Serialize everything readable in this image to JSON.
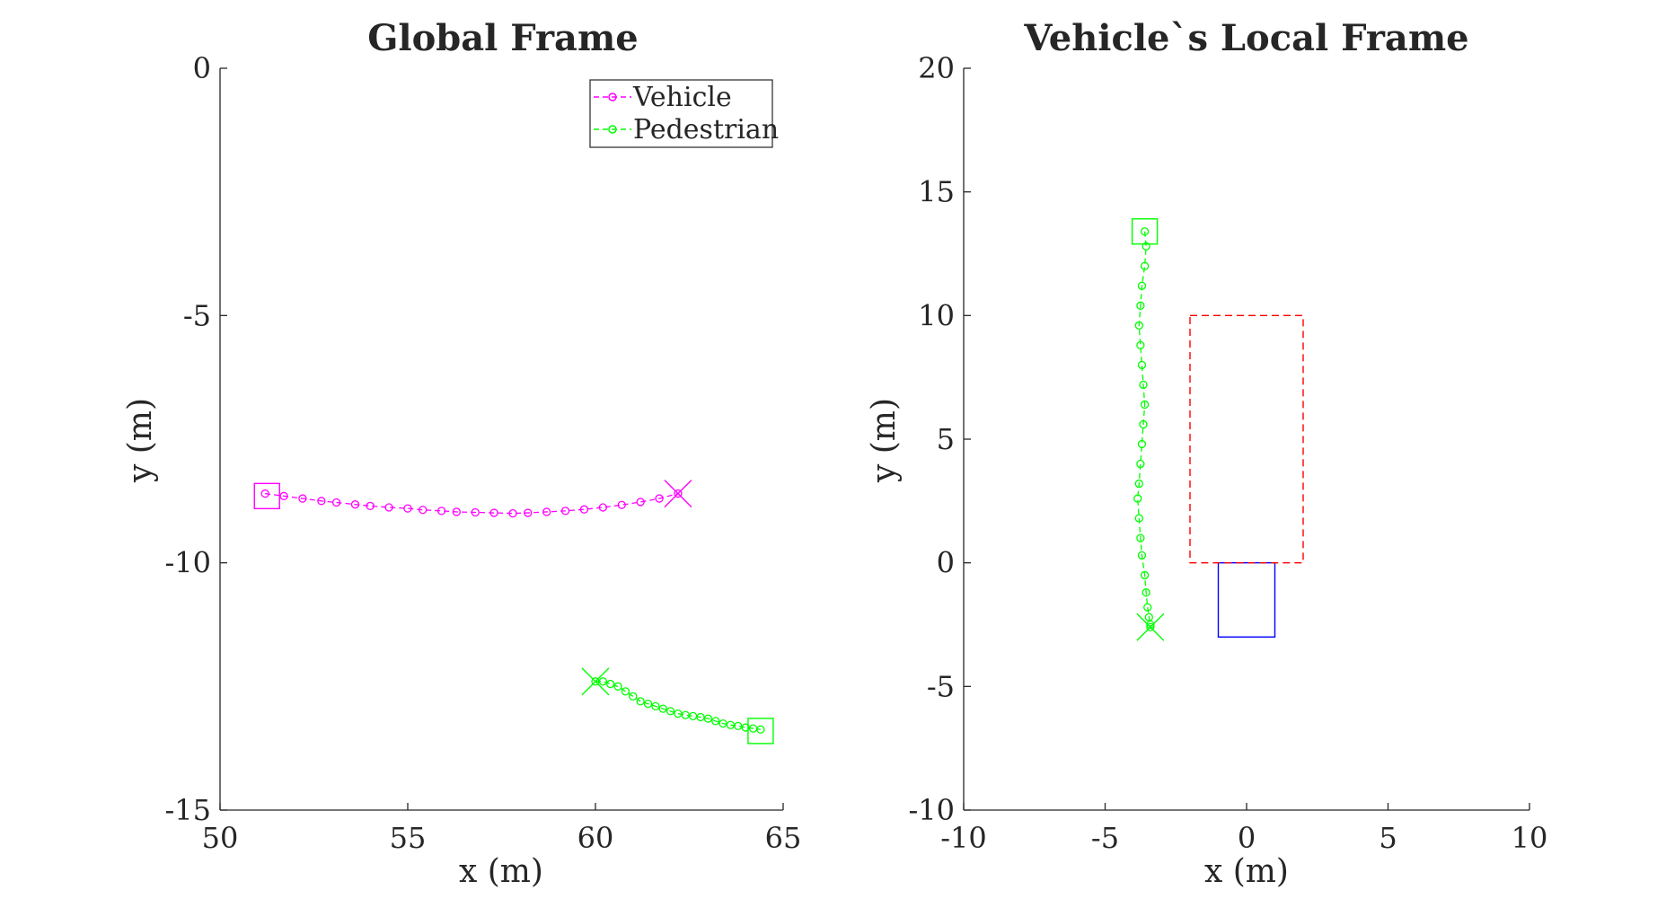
{
  "colors": {
    "vehicle": "#ff00ff",
    "pedestrian": "#00ff00",
    "ego_box": "#0000ff",
    "zone_box": "#ff0000",
    "axes": "#262626"
  },
  "chart_data": [
    {
      "type": "line",
      "title": "Global Frame",
      "xlabel": "x (m)",
      "ylabel": "y (m)",
      "xlim": [
        50,
        65
      ],
      "ylim": [
        -15,
        0
      ],
      "xticks": [
        "50",
        "55",
        "60",
        "65"
      ],
      "yticks": [
        "-15",
        "-10",
        "-5",
        "0"
      ],
      "grid": false,
      "legend_position": "top-right",
      "series": [
        {
          "name": "Vehicle",
          "style": "dashed-circles",
          "x": [
            51.2,
            51.7,
            52.2,
            52.7,
            53.1,
            53.6,
            54.0,
            54.5,
            55.0,
            55.4,
            55.9,
            56.3,
            56.8,
            57.3,
            57.8,
            58.2,
            58.7,
            59.2,
            59.7,
            60.2,
            60.7,
            61.2,
            61.7,
            62.2
          ],
          "y": [
            -8.6,
            -8.65,
            -8.7,
            -8.75,
            -8.78,
            -8.82,
            -8.85,
            -8.88,
            -8.9,
            -8.93,
            -8.95,
            -8.97,
            -8.98,
            -8.99,
            -9.0,
            -8.99,
            -8.97,
            -8.95,
            -8.92,
            -8.88,
            -8.83,
            -8.77,
            -8.7,
            -8.6
          ]
        },
        {
          "name": "Pedestrian",
          "style": "dashed-circles",
          "x": [
            60.0,
            60.2,
            60.4,
            60.6,
            60.8,
            61.0,
            61.2,
            61.4,
            61.6,
            61.8,
            62.0,
            62.2,
            62.4,
            62.6,
            62.8,
            63.0,
            63.2,
            63.4,
            63.6,
            63.8,
            64.0,
            64.2,
            64.4
          ],
          "y": [
            -12.4,
            -12.4,
            -12.45,
            -12.5,
            -12.6,
            -12.7,
            -12.8,
            -12.85,
            -12.9,
            -12.95,
            -13.0,
            -13.05,
            -13.08,
            -13.1,
            -13.12,
            -13.15,
            -13.2,
            -13.25,
            -13.28,
            -13.3,
            -13.33,
            -13.35,
            -13.37
          ]
        }
      ],
      "start_markers": [
        {
          "series": "Vehicle",
          "x": 51.25,
          "y": -8.65
        },
        {
          "series": "Pedestrian",
          "x": 64.4,
          "y": -13.4
        }
      ],
      "end_markers": [
        {
          "series": "Vehicle",
          "x": 62.2,
          "y": -8.6
        },
        {
          "series": "Pedestrian",
          "x": 60.0,
          "y": -12.4
        }
      ]
    },
    {
      "type": "line",
      "title": "Vehicle`s Local Frame",
      "xlabel": "x (m)",
      "ylabel": "y (m)",
      "xlim": [
        -10,
        10
      ],
      "ylim": [
        -10,
        20
      ],
      "xticks": [
        "-10",
        "-5",
        "0",
        "5",
        "10"
      ],
      "yticks": [
        "-10",
        "-5",
        "0",
        "5",
        "10",
        "15",
        "20"
      ],
      "grid": false,
      "series": [
        {
          "style": "dashed-circles",
          "x": [
            -3.6,
            -3.55,
            -3.6,
            -3.7,
            -3.75,
            -3.8,
            -3.75,
            -3.7,
            -3.65,
            -3.6,
            -3.65,
            -3.7,
            -3.75,
            -3.8,
            -3.85,
            -3.8,
            -3.75,
            -3.7,
            -3.6,
            -3.55,
            -3.5,
            -3.45,
            -3.4,
            -3.4
          ],
          "y": [
            13.4,
            12.8,
            12.0,
            11.2,
            10.4,
            9.6,
            8.8,
            8.0,
            7.2,
            6.4,
            5.6,
            4.8,
            4.0,
            3.2,
            2.6,
            1.8,
            1.0,
            0.3,
            -0.5,
            -1.2,
            -1.8,
            -2.2,
            -2.5,
            -2.6
          ]
        }
      ],
      "start_marker": {
        "x": -3.6,
        "y": 13.4
      },
      "end_marker": {
        "x": -3.4,
        "y": -2.6
      },
      "rectangles": [
        {
          "name": "ego-vehicle-box",
          "x0": -1,
          "y0": -3,
          "x1": 1,
          "y1": 0,
          "style": "solid",
          "color": "#0000ff"
        },
        {
          "name": "danger-zone-box",
          "x0": -2,
          "y0": 0,
          "x1": 2,
          "y1": 10,
          "style": "dashed",
          "color": "#ff0000"
        }
      ]
    }
  ]
}
